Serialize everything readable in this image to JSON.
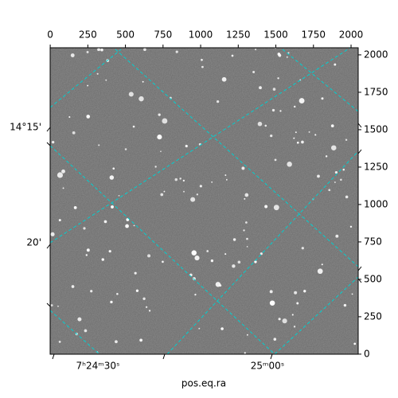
{
  "chart_data": {
    "type": "image",
    "xlabel": "pos.eq.ra",
    "xlim": [
      -0.5,
      2047.5
    ],
    "ylim": [
      -0.5,
      2047.5
    ],
    "xticks": [
      0,
      250,
      500,
      750,
      1000,
      1250,
      1500,
      1750,
      2000
    ],
    "yticks": [
      0,
      250,
      500,
      750,
      1000,
      1250,
      1500,
      1750,
      2000
    ],
    "ra_labels": [
      "7ʰ24ᵐ30ˢ",
      "25ᵐ00ˢ"
    ],
    "dec_labels": [
      "14°15'",
      "20'"
    ],
    "grid_color": "#00d0d0"
  }
}
